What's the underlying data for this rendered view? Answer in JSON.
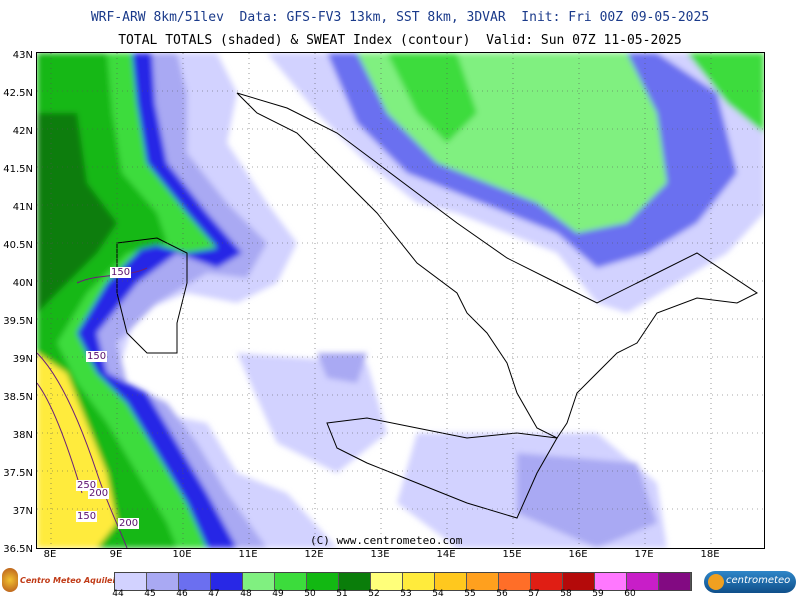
{
  "header": {
    "line1": "WRF-ARW 8km/51lev  Data: GFS-FV3 13km, SST 8km, 3DVAR  Init: Fri 00Z 09-05-2025",
    "line2": "TOTAL TOTALS (shaded) & SWEAT Index (contour)  Valid: Sun 07Z 11-05-2025"
  },
  "map": {
    "lat_labels": [
      "43N",
      "42.5N",
      "42N",
      "41.5N",
      "41N",
      "40.5N",
      "40N",
      "39.5N",
      "39N",
      "38.5N",
      "38N",
      "37.5N",
      "37N",
      "36.5N"
    ],
    "lon_labels": [
      "8E",
      "9E",
      "10E",
      "11E",
      "12E",
      "13E",
      "14E",
      "15E",
      "16E",
      "17E",
      "18E"
    ],
    "copyright": "(C) www.centrometeo.com",
    "contour_labels": [
      "150",
      "150",
      "250",
      "200",
      "150",
      "200"
    ],
    "colors": {
      "land_outline": "#000000",
      "boundary": "#9a9a9a",
      "grid": "#555555",
      "contour": "#6a1f7a"
    }
  },
  "colorbar": {
    "labels": [
      "44",
      "45",
      "46",
      "47",
      "48",
      "49",
      "50",
      "51",
      "52",
      "53",
      "54",
      "55",
      "56",
      "57",
      "58",
      "59",
      "60"
    ],
    "colors": [
      "#d2d2ff",
      "#a9a9f3",
      "#6b6ff0",
      "#2828e6",
      "#80f080",
      "#3cdc3c",
      "#12b812",
      "#0a7d0a",
      "#ffff7a",
      "#ffeb3c",
      "#ffc81e",
      "#ffa01e",
      "#ff6e28",
      "#e01e14",
      "#b40a0a",
      "#ff78ff",
      "#c81ec8",
      "#820a82"
    ]
  },
  "logos": {
    "left_text": "Centro Meteo Aquileia",
    "right_text": "centrometeo"
  }
}
